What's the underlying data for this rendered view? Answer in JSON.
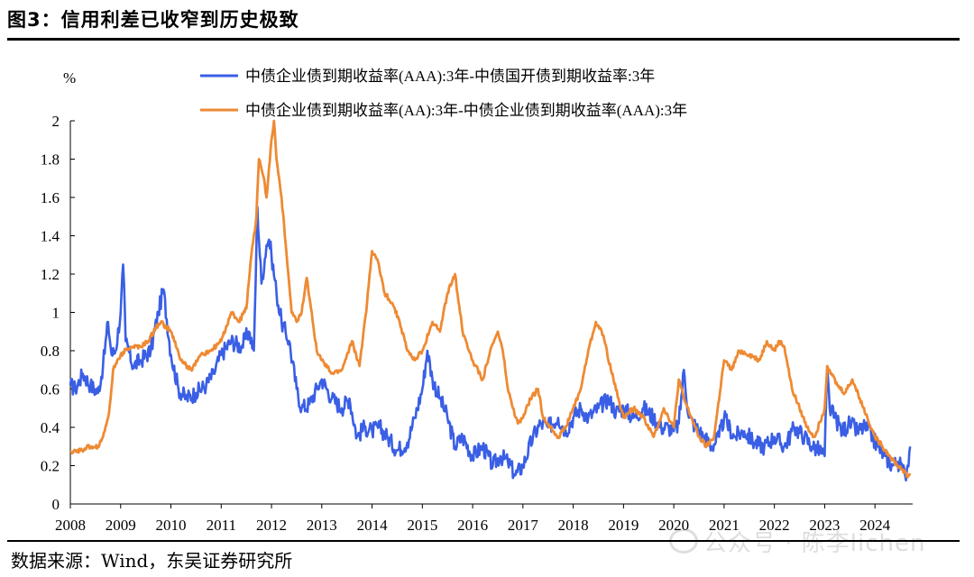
{
  "figure": {
    "title": "图3：信用利差已收窄到历史极致",
    "source": "数据来源：Wind，东吴证券研究所",
    "watermark": "公众号 · 陈李lichen"
  },
  "chart_data": {
    "type": "line",
    "title": "图3：信用利差已收窄到历史极致",
    "ylabel": "%",
    "xlabel": "",
    "ylim": [
      0,
      2
    ],
    "xlim": [
      2008,
      2024.75
    ],
    "yticks": [
      0,
      0.2,
      0.4,
      0.6,
      0.8,
      1,
      1.2,
      1.4,
      1.6,
      1.8,
      2
    ],
    "ytick_labels": [
      "0",
      "0.2",
      "0.4",
      "0.6",
      "0.8",
      "1",
      "1.2",
      "1.4",
      "1.6",
      "1.8",
      "2"
    ],
    "xticks": [
      2008,
      2009,
      2010,
      2011,
      2012,
      2013,
      2014,
      2015,
      2016,
      2017,
      2018,
      2019,
      2020,
      2021,
      2022,
      2023,
      2024
    ],
    "xtick_labels": [
      "2008",
      "2009",
      "2010",
      "2011",
      "2012",
      "2013",
      "2014",
      "2015",
      "2016",
      "2017",
      "2018",
      "2019",
      "2020",
      "2021",
      "2022",
      "2023",
      "2024"
    ],
    "grid": false,
    "legend_position": "top",
    "series": [
      {
        "name": "中债企业债到期收益率(AAA):3年-中债国开债到期收益率:3年",
        "color": "#3A5FE5",
        "x": [
          2008.0,
          2008.1,
          2008.25,
          2008.4,
          2008.55,
          2008.65,
          2008.75,
          2008.82,
          2008.9,
          2009.0,
          2009.05,
          2009.1,
          2009.25,
          2009.4,
          2009.6,
          2009.75,
          2009.85,
          2010.0,
          2010.15,
          2010.3,
          2010.5,
          2010.7,
          2010.85,
          2011.0,
          2011.2,
          2011.4,
          2011.55,
          2011.65,
          2011.72,
          2011.8,
          2011.9,
          2011.95,
          2012.0,
          2012.1,
          2012.2,
          2012.35,
          2012.5,
          2012.6,
          2012.75,
          2012.9,
          2013.0,
          2013.2,
          2013.4,
          2013.55,
          2013.7,
          2013.85,
          2014.0,
          2014.15,
          2014.3,
          2014.5,
          2014.7,
          2014.85,
          2015.0,
          2015.1,
          2015.2,
          2015.35,
          2015.5,
          2015.65,
          2015.8,
          2016.0,
          2016.2,
          2016.4,
          2016.55,
          2016.7,
          2016.85,
          2017.0,
          2017.2,
          2017.35,
          2017.5,
          2017.7,
          2017.85,
          2018.0,
          2018.15,
          2018.3,
          2018.5,
          2018.7,
          2018.85,
          2019.0,
          2019.2,
          2019.4,
          2019.6,
          2019.75,
          2019.9,
          2020.0,
          2020.1,
          2020.2,
          2020.3,
          2020.45,
          2020.6,
          2020.75,
          2020.9,
          2021.0,
          2021.2,
          2021.4,
          2021.6,
          2021.8,
          2022.0,
          2022.2,
          2022.4,
          2022.6,
          2022.75,
          2022.9,
          2023.0,
          2023.05,
          2023.1,
          2023.2,
          2023.35,
          2023.5,
          2023.65,
          2023.8,
          2023.95,
          2024.05,
          2024.2,
          2024.35,
          2024.45,
          2024.55,
          2024.6,
          2024.65,
          2024.7
        ],
        "values": [
          0.62,
          0.6,
          0.68,
          0.62,
          0.58,
          0.72,
          0.95,
          0.78,
          0.8,
          1.0,
          1.25,
          0.85,
          0.72,
          0.75,
          0.8,
          1.0,
          1.12,
          0.78,
          0.6,
          0.55,
          0.58,
          0.62,
          0.68,
          0.78,
          0.85,
          0.82,
          0.9,
          0.8,
          1.55,
          1.15,
          1.35,
          1.38,
          1.3,
          1.1,
          0.95,
          0.85,
          0.6,
          0.5,
          0.52,
          0.6,
          0.65,
          0.55,
          0.5,
          0.55,
          0.35,
          0.4,
          0.38,
          0.4,
          0.35,
          0.28,
          0.32,
          0.45,
          0.6,
          0.8,
          0.65,
          0.55,
          0.45,
          0.3,
          0.35,
          0.25,
          0.3,
          0.2,
          0.25,
          0.22,
          0.15,
          0.2,
          0.35,
          0.42,
          0.4,
          0.45,
          0.38,
          0.45,
          0.5,
          0.45,
          0.5,
          0.55,
          0.48,
          0.5,
          0.45,
          0.5,
          0.45,
          0.4,
          0.4,
          0.38,
          0.42,
          0.7,
          0.45,
          0.4,
          0.35,
          0.3,
          0.35,
          0.45,
          0.35,
          0.38,
          0.32,
          0.3,
          0.35,
          0.3,
          0.4,
          0.35,
          0.3,
          0.28,
          0.25,
          0.7,
          0.5,
          0.45,
          0.38,
          0.42,
          0.38,
          0.4,
          0.35,
          0.3,
          0.25,
          0.2,
          0.22,
          0.18,
          0.15,
          0.2,
          0.3
        ]
      },
      {
        "name": "中债企业债到期收益率(AA):3年-中债企业债到期收益率(AAA):3年",
        "color": "#EE8A33",
        "x": [
          2008.0,
          2008.2,
          2008.4,
          2008.55,
          2008.65,
          2008.75,
          2008.8,
          2008.85,
          2009.0,
          2009.2,
          2009.4,
          2009.55,
          2009.7,
          2009.8,
          2010.0,
          2010.2,
          2010.4,
          2010.6,
          2010.8,
          2011.0,
          2011.2,
          2011.35,
          2011.5,
          2011.6,
          2011.7,
          2011.75,
          2011.8,
          2011.85,
          2011.9,
          2012.0,
          2012.05,
          2012.1,
          2012.2,
          2012.3,
          2012.4,
          2012.5,
          2012.6,
          2012.7,
          2012.8,
          2012.9,
          2013.0,
          2013.2,
          2013.4,
          2013.6,
          2013.75,
          2013.9,
          2014.0,
          2014.1,
          2014.25,
          2014.4,
          2014.55,
          2014.7,
          2014.85,
          2015.0,
          2015.2,
          2015.35,
          2015.5,
          2015.65,
          2015.8,
          2016.0,
          2016.2,
          2016.35,
          2016.5,
          2016.6,
          2016.7,
          2016.8,
          2016.9,
          2017.0,
          2017.15,
          2017.3,
          2017.4,
          2017.55,
          2017.7,
          2017.85,
          2018.0,
          2018.15,
          2018.3,
          2018.45,
          2018.6,
          2018.75,
          2018.9,
          2019.0,
          2019.2,
          2019.4,
          2019.6,
          2019.8,
          2020.0,
          2020.1,
          2020.2,
          2020.35,
          2020.5,
          2020.65,
          2020.8,
          2021.0,
          2021.15,
          2021.3,
          2021.5,
          2021.7,
          2021.85,
          2022.0,
          2022.1,
          2022.2,
          2022.35,
          2022.5,
          2022.65,
          2022.8,
          2023.0,
          2023.05,
          2023.1,
          2023.25,
          2023.4,
          2023.55,
          2023.7,
          2023.85,
          2024.0,
          2024.15,
          2024.3,
          2024.45,
          2024.55,
          2024.65,
          2024.7
        ],
        "values": [
          0.27,
          0.28,
          0.3,
          0.3,
          0.35,
          0.45,
          0.55,
          0.7,
          0.78,
          0.82,
          0.82,
          0.85,
          0.92,
          0.95,
          0.9,
          0.75,
          0.7,
          0.78,
          0.8,
          0.85,
          1.0,
          0.95,
          1.02,
          1.3,
          1.5,
          1.8,
          1.75,
          1.7,
          1.6,
          1.9,
          2.0,
          1.8,
          1.6,
          1.3,
          1.0,
          0.95,
          1.0,
          1.18,
          1.0,
          0.8,
          0.75,
          0.68,
          0.7,
          0.85,
          0.72,
          1.05,
          1.32,
          1.28,
          1.1,
          1.05,
          0.95,
          0.8,
          0.75,
          0.8,
          0.95,
          0.9,
          1.1,
          1.2,
          0.9,
          0.75,
          0.65,
          0.8,
          0.9,
          0.8,
          0.6,
          0.5,
          0.42,
          0.45,
          0.55,
          0.6,
          0.45,
          0.4,
          0.35,
          0.4,
          0.5,
          0.6,
          0.8,
          0.95,
          0.88,
          0.7,
          0.55,
          0.45,
          0.5,
          0.45,
          0.35,
          0.5,
          0.4,
          0.65,
          0.55,
          0.45,
          0.35,
          0.3,
          0.35,
          0.75,
          0.7,
          0.8,
          0.78,
          0.75,
          0.85,
          0.8,
          0.85,
          0.82,
          0.6,
          0.5,
          0.4,
          0.35,
          0.5,
          0.72,
          0.7,
          0.62,
          0.58,
          0.65,
          0.55,
          0.45,
          0.35,
          0.3,
          0.25,
          0.2,
          0.18,
          0.14,
          0.16
        ]
      }
    ]
  }
}
